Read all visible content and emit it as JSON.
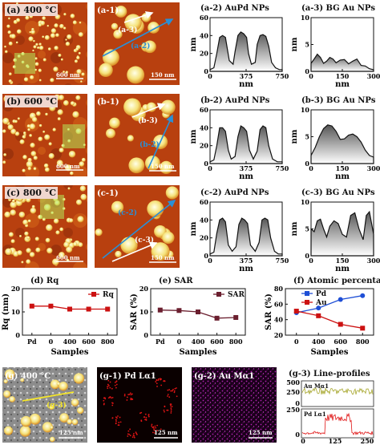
{
  "afm": {
    "labels": [
      "(a) 400 °C",
      "(b) 600 °C",
      "(c) 800 °C"
    ],
    "scalebar": "600 nm",
    "zoom_labels": [
      "(a-1)",
      "(b-1)",
      "(c-1)"
    ],
    "zoom_scalebar": "150 nm",
    "zoom_markers": [
      [
        "(a-3)",
        "(a-2)"
      ],
      [
        "(b-3)",
        "(b-2)"
      ],
      [
        "(c-2)",
        "(c-3)"
      ]
    ]
  },
  "edx": {
    "g_label": "(g) 400 °C",
    "g_marker": "(g-3)",
    "g_scale": "125 nm",
    "g1_label": "(g-1) Pd Lα1",
    "g1_scale": "125 nm",
    "g2_label": "(g-2) Au Mα1",
    "g2_scale": "125 nm",
    "g3_title": "(g-3) Line-profiles",
    "g3_au": "Au Mα1",
    "g3_pd": "Pd Lα1",
    "g3_au_ticks": [
      "500",
      "250",
      "0"
    ],
    "g3_pd_ticks": [
      "250",
      "0"
    ],
    "g3_x_ticks": [
      "0",
      "125",
      "250"
    ]
  },
  "colors": {
    "rq": "#cc1111",
    "sar": "#6b1f2f",
    "pd": "#1f4fd6",
    "au": "#cc1111",
    "au_map": "#b020b0",
    "pd_map": "#e01515"
  },
  "chart_data": [
    {
      "type": "area",
      "panel": "(a-2)",
      "title": "(a-2) AuPd NPs",
      "xlabel": "nm",
      "ylabel": "nm",
      "xlim": [
        0,
        750
      ],
      "ylim": [
        0,
        60
      ],
      "x_ticks": [
        "0",
        "375",
        "750"
      ],
      "y_ticks": [
        "60",
        "40",
        "20",
        "0"
      ],
      "x": [
        0,
        40,
        70,
        100,
        130,
        160,
        180,
        200,
        240,
        260,
        290,
        320,
        350,
        380,
        400,
        430,
        470,
        490,
        520,
        550,
        580,
        610,
        640,
        680,
        720,
        750
      ],
      "y": [
        2,
        4,
        20,
        38,
        40,
        38,
        25,
        12,
        8,
        22,
        40,
        44,
        42,
        38,
        20,
        8,
        10,
        30,
        40,
        41,
        39,
        28,
        10,
        4,
        2,
        2
      ]
    },
    {
      "type": "area",
      "panel": "(a-3)",
      "title": "(a-3) BG Au NPs",
      "xlabel": "nm",
      "ylabel": "nm",
      "xlim": [
        0,
        300
      ],
      "ylim": [
        0,
        10
      ],
      "x_ticks": [
        "0",
        "150",
        "300"
      ],
      "y_ticks": [
        "10",
        "5",
        "0"
      ],
      "x": [
        0,
        15,
        30,
        45,
        60,
        75,
        90,
        105,
        120,
        140,
        160,
        180,
        200,
        220,
        240,
        260,
        280,
        300
      ],
      "y": [
        1.5,
        2.3,
        3.2,
        2.6,
        1.5,
        1.9,
        2.6,
        2.3,
        1.6,
        2.1,
        2.2,
        1.4,
        1.9,
        2.3,
        1.1,
        1.0,
        0.5,
        0.3
      ]
    },
    {
      "type": "area",
      "panel": "(b-2)",
      "title": "(b-2) AuPd NPs",
      "xlabel": "nm",
      "ylabel": "nm",
      "xlim": [
        0,
        750
      ],
      "ylim": [
        0,
        60
      ],
      "x_ticks": [
        "0",
        "375",
        "750"
      ],
      "y_ticks": [
        "60",
        "40",
        "20",
        "0"
      ],
      "x": [
        0,
        40,
        70,
        100,
        130,
        160,
        190,
        220,
        260,
        290,
        320,
        350,
        380,
        410,
        450,
        490,
        520,
        550,
        580,
        610,
        650,
        700,
        750
      ],
      "y": [
        2,
        4,
        20,
        40,
        40,
        36,
        15,
        5,
        8,
        30,
        42,
        40,
        36,
        15,
        5,
        14,
        38,
        42,
        40,
        20,
        5,
        2,
        2
      ]
    },
    {
      "type": "area",
      "panel": "(b-3)",
      "title": "(b-3) BG Au NPs",
      "xlabel": "nm",
      "ylabel": "nm",
      "xlim": [
        0,
        300
      ],
      "ylim": [
        0,
        10
      ],
      "x_ticks": [
        "0",
        "150",
        "300"
      ],
      "y_ticks": [
        "10",
        "5",
        "0"
      ],
      "x": [
        0,
        20,
        40,
        60,
        80,
        100,
        120,
        140,
        160,
        180,
        200,
        220,
        240,
        260,
        280,
        300
      ],
      "y": [
        1.5,
        3,
        5,
        6.5,
        7.2,
        7.0,
        6.0,
        4.5,
        4.6,
        5.3,
        5.5,
        5.0,
        4.0,
        2.5,
        1.5,
        1.2
      ]
    },
    {
      "type": "area",
      "panel": "(c-2)",
      "title": "(c-2) AuPd NPs",
      "xlabel": "nm",
      "ylabel": "nm",
      "xlim": [
        0,
        750
      ],
      "ylim": [
        0,
        60
      ],
      "x_ticks": [
        "0",
        "375",
        "750"
      ],
      "y_ticks": [
        "60",
        "40",
        "20",
        "0"
      ],
      "x": [
        0,
        40,
        70,
        100,
        130,
        160,
        190,
        230,
        270,
        300,
        330,
        360,
        390,
        420,
        470,
        510,
        540,
        570,
        600,
        630,
        670,
        710,
        750
      ],
      "y": [
        2,
        4,
        25,
        40,
        42,
        38,
        12,
        5,
        10,
        35,
        42,
        40,
        36,
        12,
        5,
        15,
        40,
        42,
        40,
        20,
        5,
        2,
        2
      ]
    },
    {
      "type": "area",
      "panel": "(c-3)",
      "title": "(c-3) BG Au NPs",
      "xlabel": "nm",
      "ylabel": "nm",
      "xlim": [
        0,
        300
      ],
      "ylim": [
        0,
        10
      ],
      "x_ticks": [
        "0",
        "150",
        "300"
      ],
      "y_ticks": [
        "10",
        "5",
        "0"
      ],
      "x": [
        0,
        15,
        30,
        45,
        60,
        75,
        90,
        110,
        130,
        150,
        170,
        190,
        210,
        230,
        250,
        265,
        280,
        300
      ],
      "y": [
        5,
        4.5,
        6.5,
        6.8,
        5.0,
        3.5,
        5.5,
        6.5,
        6.0,
        4.0,
        3.5,
        7.5,
        8.0,
        5.0,
        3.0,
        7.5,
        8.2,
        4.0
      ]
    },
    {
      "type": "line",
      "panel": "(d)",
      "title": "(d) Rq",
      "xlabel": "Samples",
      "ylabel": "Rq (nm)",
      "categories": [
        "Pd",
        "0",
        "400",
        "600",
        "800"
      ],
      "ylim": [
        0,
        20
      ],
      "y_ticks": [
        "0",
        "10",
        "20"
      ],
      "series": [
        {
          "name": "Rq",
          "values": [
            12.5,
            12.5,
            11.2,
            11.2,
            11.2
          ]
        }
      ]
    },
    {
      "type": "line",
      "panel": "(e)",
      "title": "(e) SAR",
      "xlabel": "Samples",
      "ylabel": "SAR (%)",
      "categories": [
        "Pd",
        "0",
        "400",
        "600",
        "800"
      ],
      "ylim": [
        0,
        20
      ],
      "y_ticks": [
        "0",
        "10",
        "20"
      ],
      "series": [
        {
          "name": "SAR",
          "values": [
            10.8,
            10.6,
            10.0,
            7.3,
            7.6
          ]
        }
      ]
    },
    {
      "type": "line",
      "panel": "(f)",
      "title": "(f) Atomic percentage",
      "xlabel": "Samples",
      "ylabel": "SAR (%)",
      "categories": [
        "0",
        "400",
        "600",
        "800"
      ],
      "ylim": [
        20,
        80
      ],
      "y_ticks": [
        "20",
        "40",
        "60",
        "80"
      ],
      "series": [
        {
          "name": "Pd",
          "values": [
            49,
            55,
            66,
            71
          ]
        },
        {
          "name": "Au",
          "values": [
            51,
            45,
            34,
            29
          ]
        }
      ]
    }
  ]
}
